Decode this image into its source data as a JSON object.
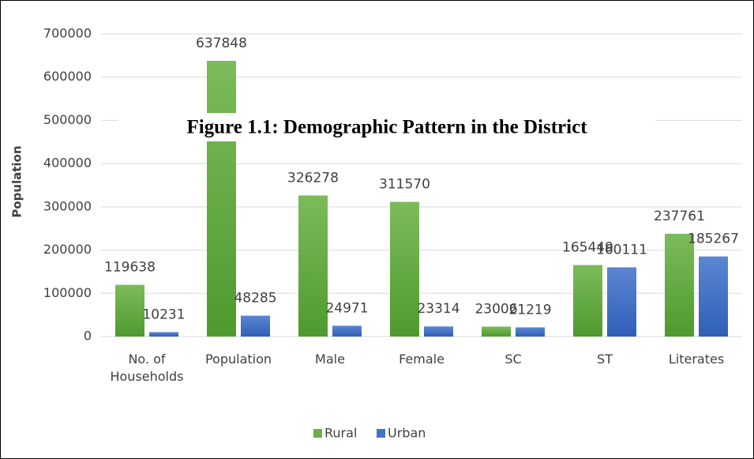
{
  "chart_data": {
    "type": "bar",
    "title": "Figure 1.1: Demographic Pattern in the District",
    "y_label": "Population",
    "categories": [
      "No. of Households",
      "Population",
      "Male",
      "Female",
      "SC",
      "ST",
      "Literates"
    ],
    "series": [
      {
        "name": "Rural",
        "color": "#70ad47",
        "values": [
          119638,
          637848,
          326278,
          311570,
          23006,
          165449,
          237761
        ]
      },
      {
        "name": "Urban",
        "color": "#4472c4",
        "values": [
          10231,
          48285,
          24971,
          23314,
          21219,
          160111,
          185267
        ]
      }
    ],
    "ylim": [
      0,
      700000
    ],
    "yticks": [
      0,
      100000,
      200000,
      300000,
      400000,
      500000,
      600000,
      700000
    ],
    "grid": true,
    "legend": "bottom"
  }
}
